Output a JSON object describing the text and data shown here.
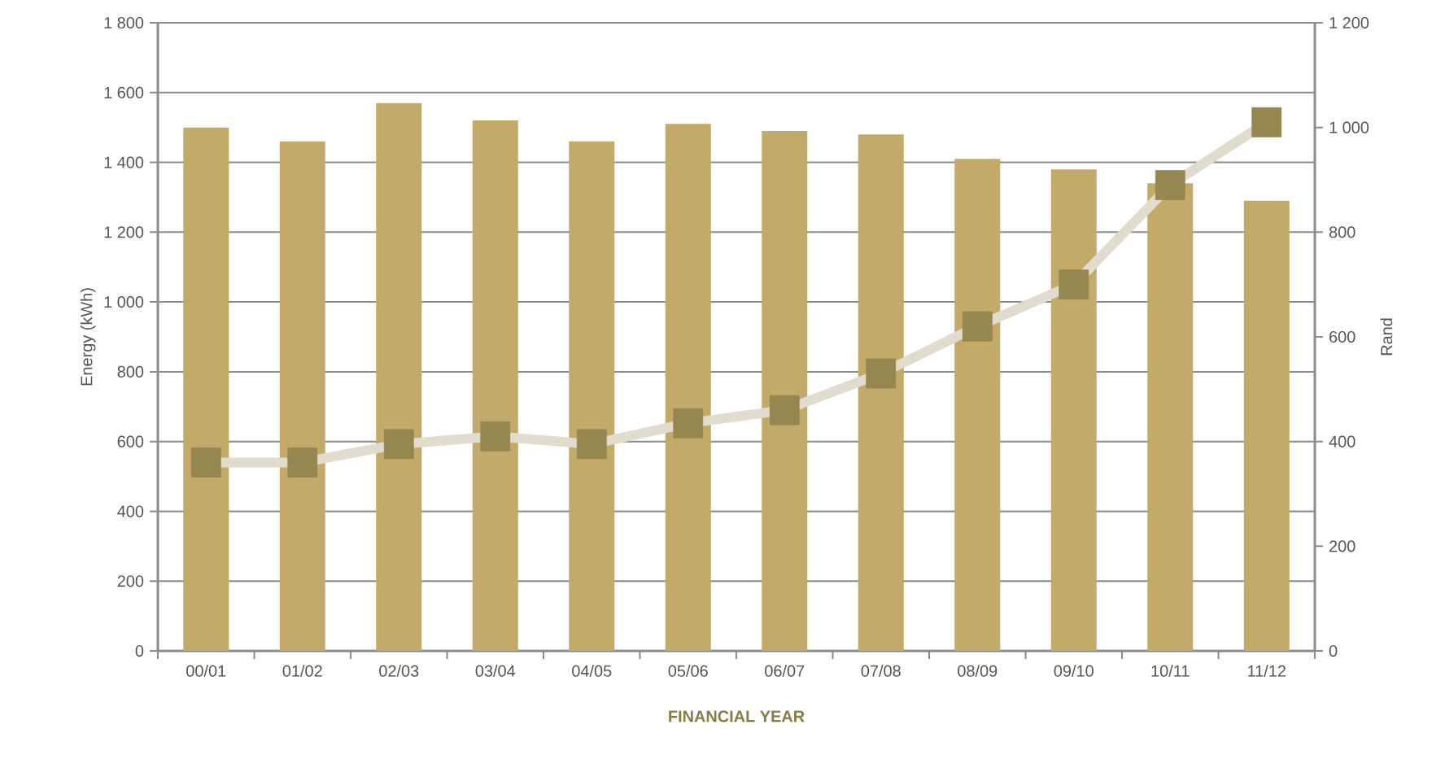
{
  "chart_data": {
    "type": "bar",
    "categories": [
      "00/01",
      "01/02",
      "02/03",
      "03/04",
      "04/05",
      "05/06",
      "06/07",
      "07/08",
      "08/09",
      "09/10",
      "10/11",
      "11/12"
    ],
    "xlabel": "FINANCIAL YEAR",
    "ylabel": "Energy (kWh)",
    "y2label": "Rand",
    "ylim": [
      0,
      1800
    ],
    "yticks": [
      0,
      200,
      400,
      600,
      800,
      {
        "value": 1000,
        "label": "1 000"
      },
      {
        "value": 1200,
        "label": "1 200"
      },
      {
        "value": 1400,
        "label": "1 400"
      },
      {
        "value": 1600,
        "label": "1 600"
      },
      {
        "value": 1800,
        "label": "1 800"
      }
    ],
    "y2lim": [
      0,
      1200
    ],
    "y2ticks": [
      0,
      200,
      400,
      600,
      800,
      {
        "value": 1000,
        "label": "1 000"
      },
      {
        "value": 1200,
        "label": "1 200"
      }
    ],
    "grid": "y",
    "series": [
      {
        "color": "#c4aa68",
        "values": [
          1500,
          1460,
          1570,
          1520,
          1460,
          1510,
          1490,
          1480,
          1410,
          1380,
          1340,
          1290
        ]
      },
      {
        "type": "line",
        "axis": "y2",
        "color": "#e2dccf",
        "marker": "square",
        "colors": [
          "#958750",
          "#958750",
          "#958750",
          "#958750",
          "#958750",
          "#958750",
          "#958750",
          "#958750",
          "#958750",
          "#958750",
          "#958750",
          "#958750"
        ],
        "values": [
          360,
          360,
          395,
          410,
          395,
          435,
          460,
          530,
          620,
          700,
          890,
          1010
        ]
      }
    ]
  }
}
